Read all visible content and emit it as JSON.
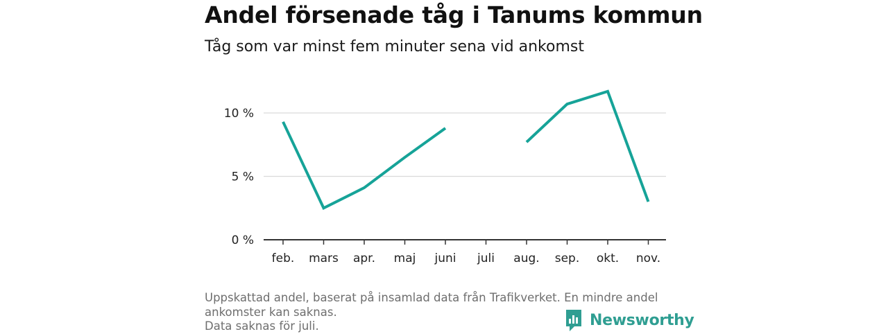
{
  "title": "Andel försenade tåg i Tanums kommun",
  "subtitle": "Tåg som var minst fem minuter sena vid ankomst",
  "footer": {
    "line1": "Uppskattad andel, baserat på insamlad data från Trafikverket. En mindre andel",
    "line2": "ankomster kan saknas.",
    "line3": "Data saknas för juli."
  },
  "brand": {
    "name": "Newsworthy",
    "icon": "newsworthy-logo-icon",
    "color": "#2f9e92"
  },
  "colors": {
    "line": "#16a398",
    "grid": "#d9d9d9",
    "axis": "#333333",
    "text": "#222222"
  },
  "chart_data": {
    "type": "line",
    "categories": [
      "feb.",
      "mars",
      "apr.",
      "maj",
      "juni",
      "juli",
      "aug.",
      "sep.",
      "okt.",
      "nov."
    ],
    "series": [
      {
        "values": [
          9.3,
          2.5,
          4.1,
          6.5,
          8.8,
          null,
          7.7,
          10.7,
          11.7,
          3.0
        ]
      }
    ],
    "yticks": [
      0,
      5,
      10
    ],
    "ytick_labels": [
      "0 %",
      "5 %",
      "10 %"
    ],
    "ylim": [
      0,
      12
    ],
    "grid": true,
    "xlabel": "",
    "ylabel": ""
  }
}
